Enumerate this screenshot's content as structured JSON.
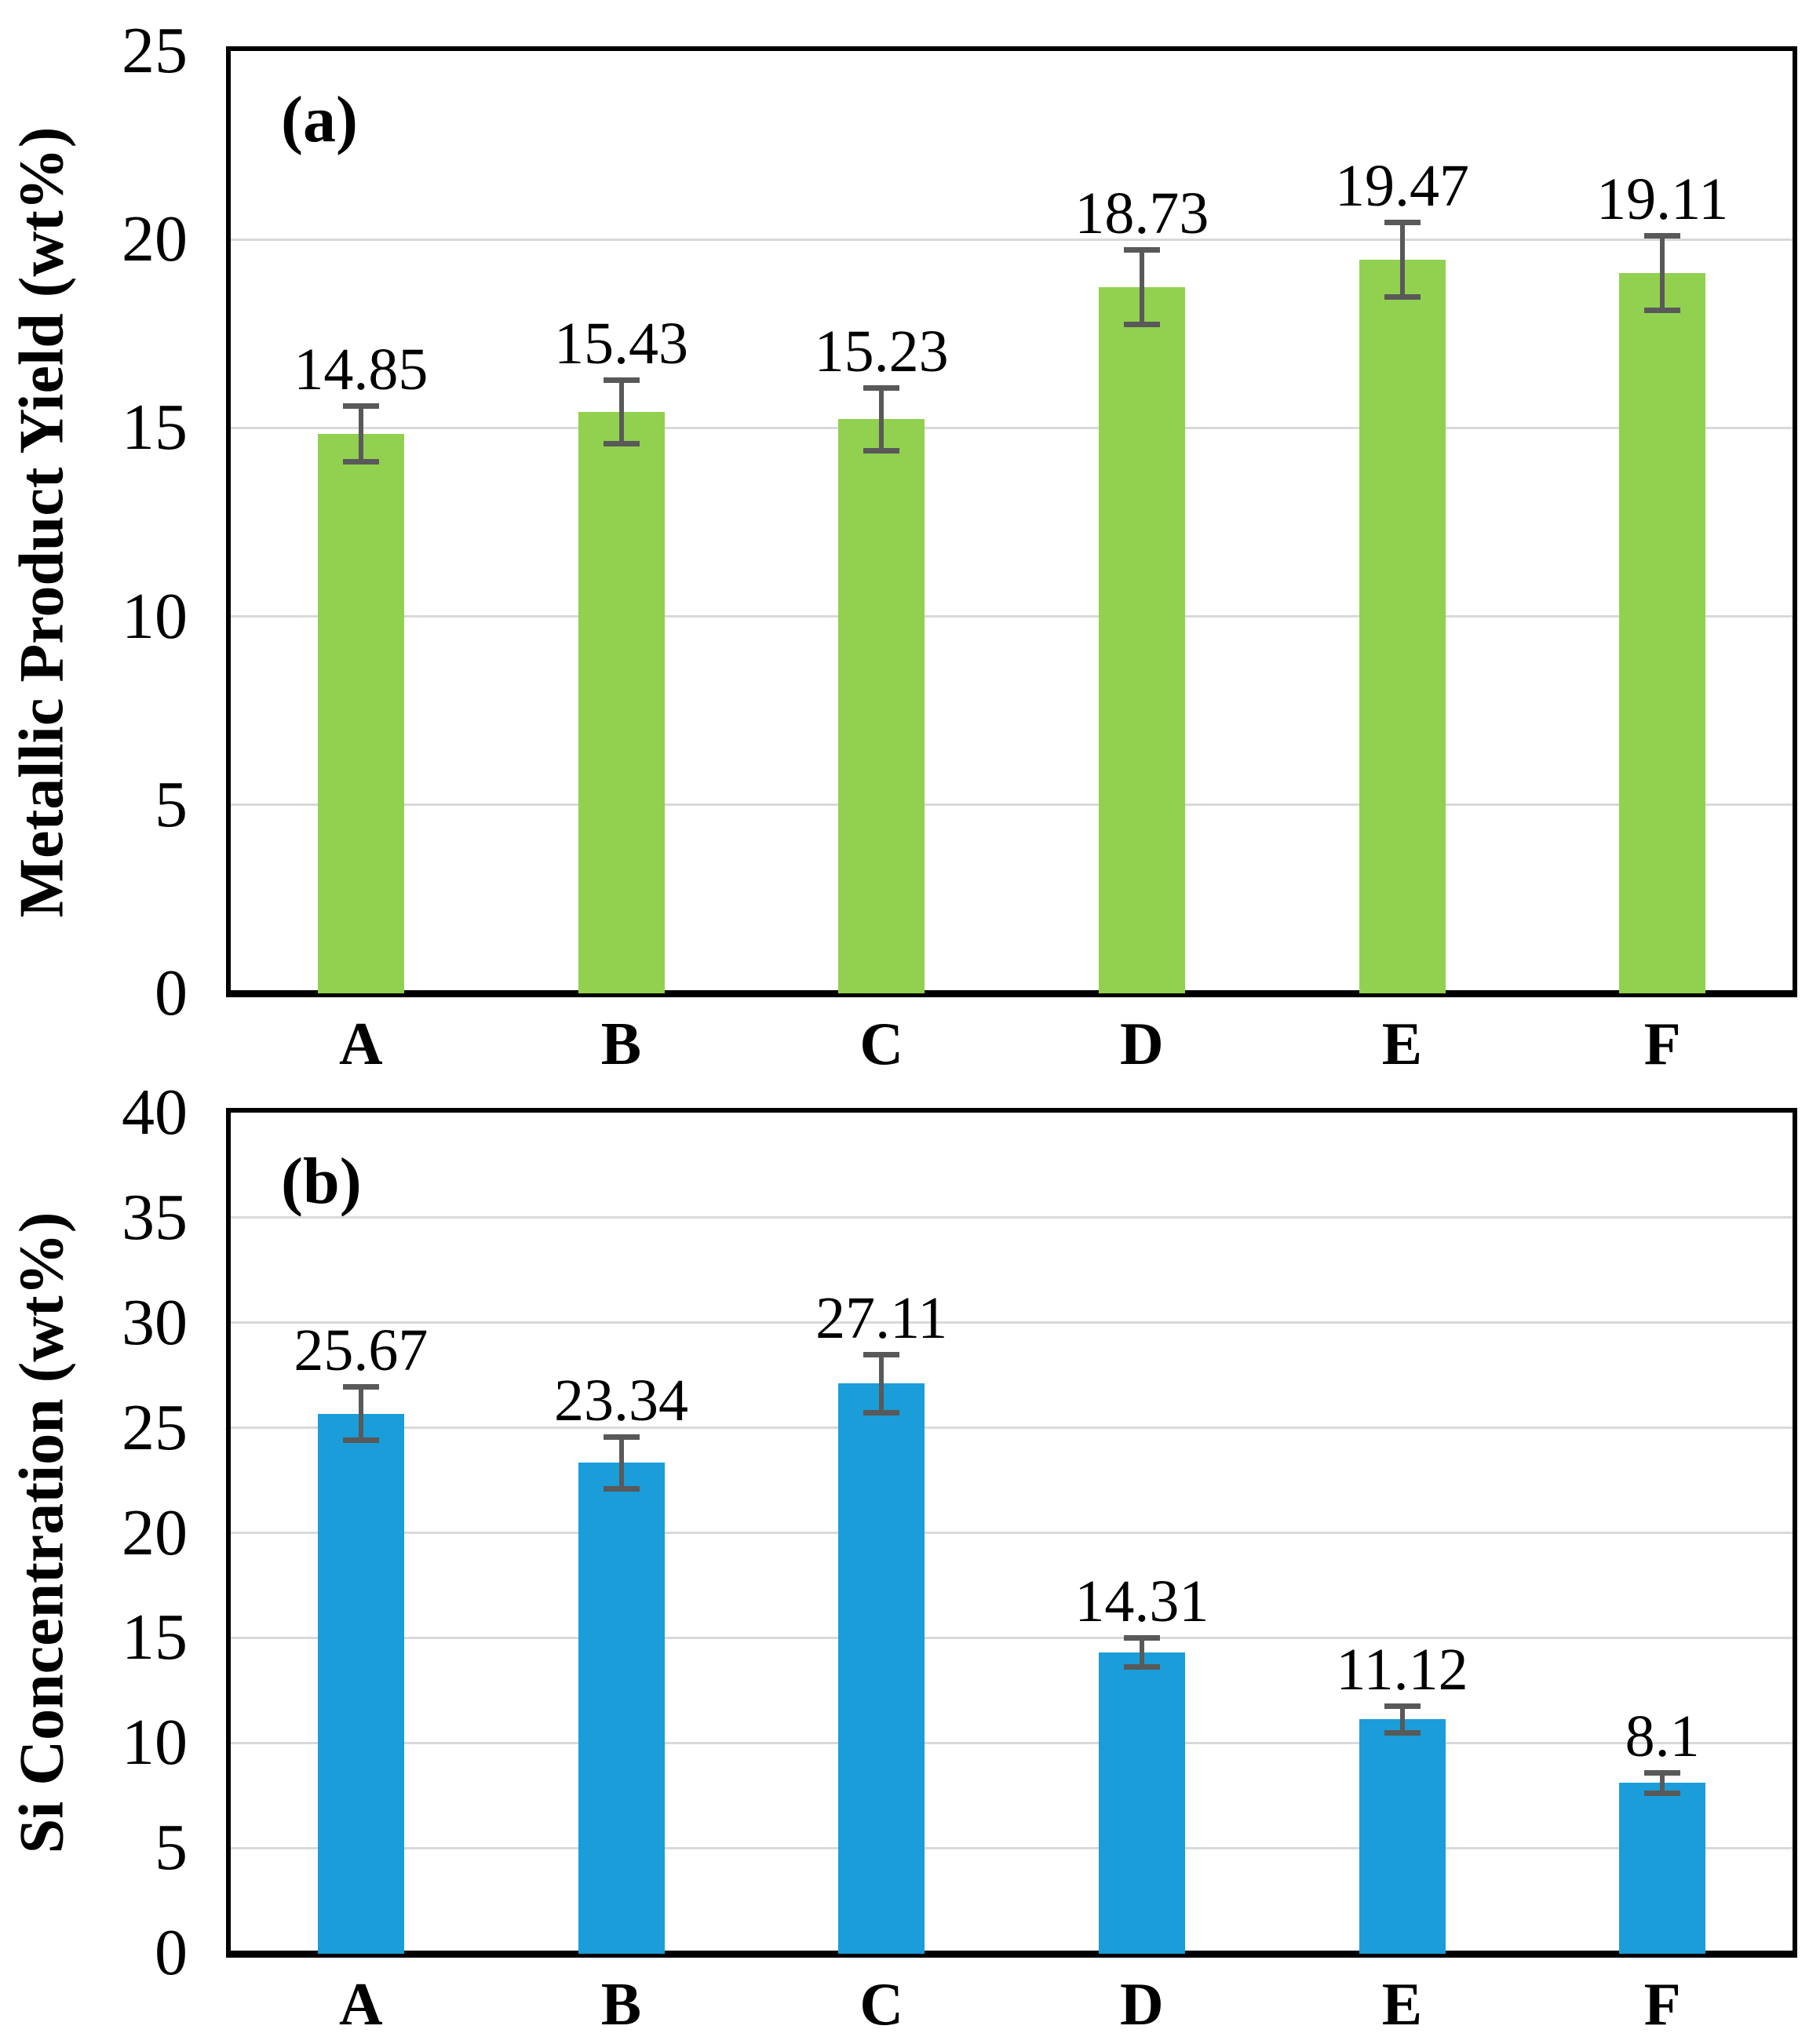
{
  "figure": {
    "background": "#ffffff",
    "panel_count": 2
  },
  "chart_data": [
    {
      "type": "bar",
      "panel_label": "(a)",
      "title": "",
      "ylabel": "Metallic Product Yield (wt%)",
      "xlabel": "",
      "categories": [
        "A",
        "B",
        "C",
        "D",
        "E",
        "F"
      ],
      "values": [
        14.85,
        15.43,
        15.23,
        18.73,
        19.47,
        19.11
      ],
      "data_labels": [
        "14.85",
        "15.43",
        "15.23",
        "18.73",
        "19.47",
        "19.11"
      ],
      "error_bars": [
        0.75,
        0.85,
        0.85,
        1.0,
        1.0,
        1.0
      ],
      "ylim": [
        0,
        25
      ],
      "ytick_step": 5,
      "yticks": [
        "0",
        "5",
        "10",
        "15",
        "20",
        "25"
      ],
      "grid": true,
      "legend": null,
      "bar_color": "#92d050",
      "error_bar_color": "#595959",
      "gridline_color": "#d9d9d9",
      "axis_color": "#000000"
    },
    {
      "type": "bar",
      "panel_label": "(b)",
      "title": "",
      "ylabel": "Si Concentration (wt%)",
      "xlabel": "",
      "categories": [
        "A",
        "B",
        "C",
        "D",
        "E",
        "F"
      ],
      "values": [
        25.67,
        23.34,
        27.11,
        14.31,
        11.12,
        8.1
      ],
      "data_labels": [
        "25.67",
        "23.34",
        "27.11",
        "14.31",
        "11.12",
        "8.1"
      ],
      "error_bars": [
        1.3,
        1.25,
        1.4,
        0.7,
        0.65,
        0.5
      ],
      "ylim": [
        0,
        40
      ],
      "ytick_step": 5,
      "yticks": [
        "0",
        "5",
        "10",
        "15",
        "20",
        "25",
        "30",
        "35",
        "40"
      ],
      "grid": true,
      "legend": null,
      "bar_color": "#1b9dd9",
      "error_bar_color": "#595959",
      "gridline_color": "#d9d9d9",
      "axis_color": "#000000"
    }
  ]
}
